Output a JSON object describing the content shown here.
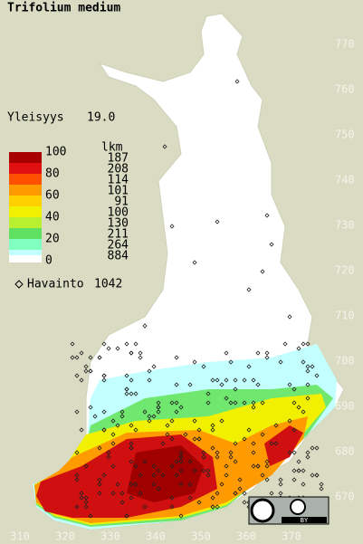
{
  "title": "Trifolium medium",
  "frequency": {
    "label": "Yleisyys",
    "value": "19.0"
  },
  "legend": {
    "scale": [
      100,
      80,
      60,
      40,
      20,
      0
    ],
    "count_header": "lkm",
    "counts": [
      187,
      208,
      114,
      101,
      91,
      100,
      130,
      211,
      264,
      884
    ],
    "observations": {
      "label": "Havainto",
      "value": 1042
    }
  },
  "axes": {
    "y_labels": [
      770,
      760,
      750,
      740,
      730,
      720,
      710,
      700,
      690,
      680,
      670
    ],
    "x_labels": [
      310,
      320,
      330,
      340,
      350,
      360,
      370
    ]
  },
  "license": "BY"
}
